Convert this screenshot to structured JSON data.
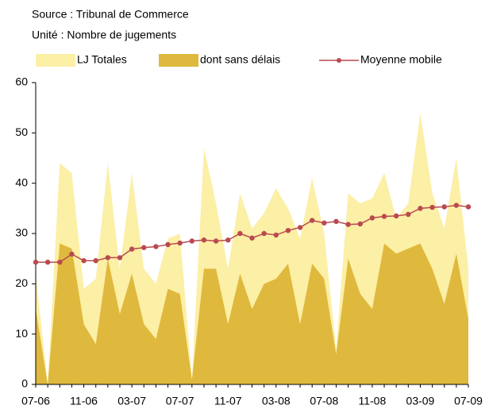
{
  "chart_data": {
    "type": "area_line",
    "source": "Source : Tribunal de Commerce",
    "unit": "Unité : Nombre de jugements",
    "categories": [
      "07-06",
      null,
      null,
      null,
      "11-06",
      null,
      null,
      null,
      "03-07",
      null,
      null,
      null,
      "07-07",
      null,
      null,
      null,
      "11-07",
      null,
      null,
      null,
      "03-08",
      null,
      null,
      null,
      "07-08",
      null,
      null,
      null,
      "11-08",
      null,
      null,
      null,
      "03-09",
      null,
      null,
      null,
      "07-09"
    ],
    "series": [
      {
        "name": "LJ Totales",
        "type": "area",
        "color": "#fcefa6",
        "values": [
          22,
          0,
          44,
          42,
          19,
          21,
          44,
          23,
          42,
          23,
          20,
          29,
          30,
          1,
          47,
          36,
          23,
          38,
          31,
          34,
          39,
          35,
          29,
          41,
          30,
          7,
          38,
          36,
          37,
          42,
          33,
          36,
          54,
          38,
          31,
          45,
          23
        ]
      },
      {
        "name": "dont sans délais",
        "type": "area",
        "color": "#dfb93d",
        "values": [
          15,
          0,
          28,
          27,
          12,
          8,
          25,
          14,
          22,
          12,
          9,
          19,
          18,
          1,
          23,
          23,
          12,
          22,
          15,
          20,
          21,
          24,
          12,
          24,
          21,
          6,
          25,
          18,
          15,
          28,
          26,
          27,
          28,
          23,
          16,
          26,
          13
        ]
      },
      {
        "name": "Moyenne mobile",
        "type": "line",
        "color": "#b94a4f",
        "values": [
          24.3,
          24.3,
          24.3,
          25.9,
          24.6,
          24.6,
          25.2,
          25.2,
          26.9,
          27.2,
          27.4,
          27.8,
          28.1,
          28.5,
          28.7,
          28.5,
          28.7,
          30.0,
          29.1,
          30.0,
          29.7,
          30.6,
          31.2,
          32.6,
          32.1,
          32.4,
          31.8,
          31.9,
          33.1,
          33.4,
          33.5,
          33.8,
          35.0,
          35.2,
          35.3,
          35.6,
          35.3
        ]
      }
    ],
    "ylim": [
      0,
      60
    ],
    "yticks": [
      0,
      10,
      20,
      30,
      40,
      50,
      60
    ],
    "grid": false
  }
}
